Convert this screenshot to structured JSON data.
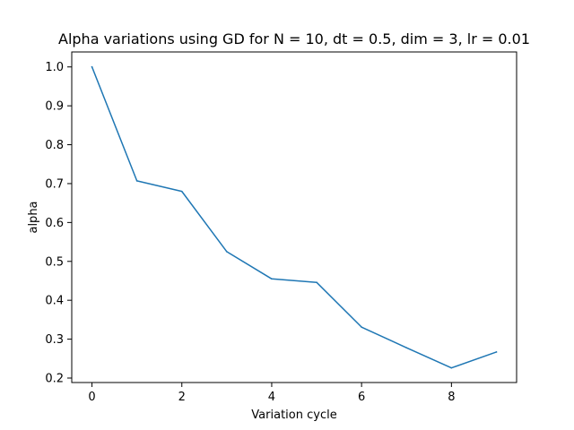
{
  "chart_data": {
    "type": "line",
    "title": "Alpha variations using GD for N = 10, dt = 0.5, dim = 3, lr = 0.01",
    "xlabel": "Variation cycle",
    "ylabel": "alpha",
    "x": [
      0,
      1,
      2,
      3,
      4,
      5,
      6,
      7,
      8,
      9
    ],
    "series": [
      {
        "values": [
          1.0,
          0.707,
          0.68,
          0.525,
          0.455,
          0.446,
          0.331,
          0.278,
          0.226,
          0.267
        ],
        "color": "#1f77b4"
      }
    ],
    "xlim": [
      -0.45,
      9.45
    ],
    "ylim": [
      0.1885,
      1.0385
    ],
    "xticks": [
      0,
      2,
      4,
      6,
      8
    ],
    "xtick_labels": [
      "0",
      "2",
      "4",
      "6",
      "8"
    ],
    "yticks": [
      0.2,
      0.3,
      0.4,
      0.5,
      0.6,
      0.7,
      0.8,
      0.9,
      1.0
    ],
    "ytick_labels": [
      "0.2",
      "0.3",
      "0.4",
      "0.5",
      "0.6",
      "0.7",
      "0.8",
      "0.9",
      "1.0"
    ],
    "grid": false,
    "legend": "none"
  }
}
